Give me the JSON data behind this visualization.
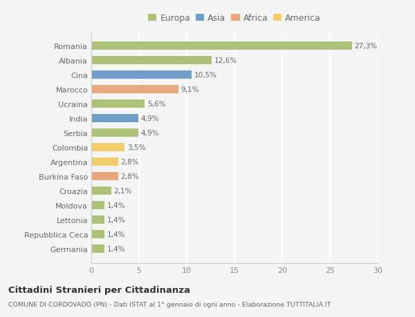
{
  "categories": [
    "Romania",
    "Albania",
    "Cina",
    "Marocco",
    "Ucraina",
    "India",
    "Serbia",
    "Colombia",
    "Argentina",
    "Burkina Faso",
    "Croazia",
    "Moldova",
    "Lettonia",
    "Repubblica Ceca",
    "Germania"
  ],
  "values": [
    27.3,
    12.6,
    10.5,
    9.1,
    5.6,
    4.9,
    4.9,
    3.5,
    2.8,
    2.8,
    2.1,
    1.4,
    1.4,
    1.4,
    1.4
  ],
  "labels": [
    "27,3%",
    "12,6%",
    "10,5%",
    "9,1%",
    "5,6%",
    "4,9%",
    "4,9%",
    "3,5%",
    "2,8%",
    "2,8%",
    "2,1%",
    "1,4%",
    "1,4%",
    "1,4%",
    "1,4%"
  ],
  "colors": [
    "#adc178",
    "#adc178",
    "#6e9ec9",
    "#e8a87c",
    "#adc178",
    "#6e9ec9",
    "#adc178",
    "#f2cb6b",
    "#f2cb6b",
    "#e8a87c",
    "#adc178",
    "#adc178",
    "#adc178",
    "#adc178",
    "#adc178"
  ],
  "legend_labels": [
    "Europa",
    "Asia",
    "Africa",
    "America"
  ],
  "legend_colors": [
    "#adc178",
    "#6e9ec9",
    "#e8a87c",
    "#f2cb6b"
  ],
  "xlim": [
    0,
    30
  ],
  "xticks": [
    0,
    5,
    10,
    15,
    20,
    25,
    30
  ],
  "title": "Cittadini Stranieri per Cittadinanza",
  "subtitle": "COMUNE DI CORDOVADO (PN) - Dati ISTAT al 1° gennaio di ogni anno - Elaborazione TUTTITALIA.IT",
  "background_color": "#f5f5f5",
  "grid_color": "#ffffff",
  "bar_height": 0.55
}
